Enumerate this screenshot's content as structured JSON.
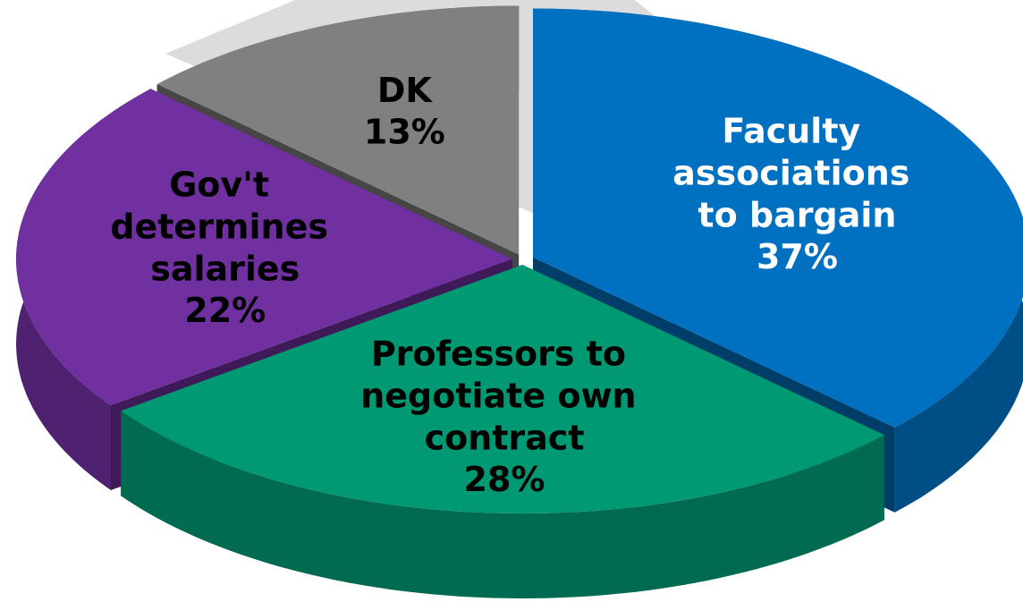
{
  "chart_data": {
    "type": "pie",
    "categories": [
      "Faculty associations to bargain",
      "Professors to negotiate own contract",
      "Gov't determines salaries",
      "DK"
    ],
    "values": [
      37,
      28,
      22,
      13
    ],
    "value_labels": [
      "37%",
      "28%",
      "22%",
      "13%"
    ],
    "colors": [
      "#0070c0",
      "#009973",
      "#7030a0",
      "#808080"
    ],
    "label_colors": [
      "#ffffff",
      "#000000",
      "#000000",
      "#000000"
    ]
  }
}
